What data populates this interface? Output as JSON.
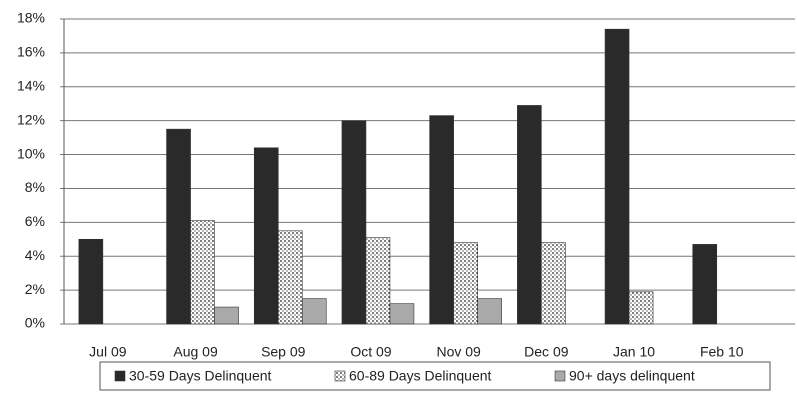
{
  "chart_data": {
    "type": "bar",
    "categories": [
      "Jul 09",
      "Aug 09",
      "Sep 09",
      "Oct 09",
      "Nov 09",
      "Dec 09",
      "Jan 10",
      "Feb 10"
    ],
    "series": [
      {
        "name": "30-59 Days Delinquent",
        "color": "#2a2a2a",
        "values": [
          5.0,
          11.5,
          10.4,
          12.0,
          12.3,
          12.9,
          17.4,
          4.7
        ]
      },
      {
        "name": "60-89 Days Delinquent",
        "color": "#ffffff",
        "pattern": "dots",
        "values": [
          0,
          6.1,
          5.5,
          5.1,
          4.8,
          4.8,
          1.9,
          0
        ]
      },
      {
        "name": "90+ days delinquent",
        "color": "#aaaaaa",
        "values": [
          0,
          1.0,
          1.5,
          1.2,
          1.5,
          0,
          0,
          0
        ]
      }
    ],
    "ylim": [
      0,
      18
    ],
    "yticks": [
      {
        "value": 0,
        "label": "0%"
      },
      {
        "value": 2,
        "label": "2%"
      },
      {
        "value": 4,
        "label": "4%"
      },
      {
        "value": 6,
        "label": "6%"
      },
      {
        "value": 8,
        "label": "8%"
      },
      {
        "value": 10,
        "label": "10%"
      },
      {
        "value": 12,
        "label": "12%"
      },
      {
        "value": 14,
        "label": "14%"
      },
      {
        "value": 16,
        "label": "16%"
      },
      {
        "value": 18,
        "label": "18%"
      }
    ],
    "grid": true,
    "legend": "bottom"
  }
}
